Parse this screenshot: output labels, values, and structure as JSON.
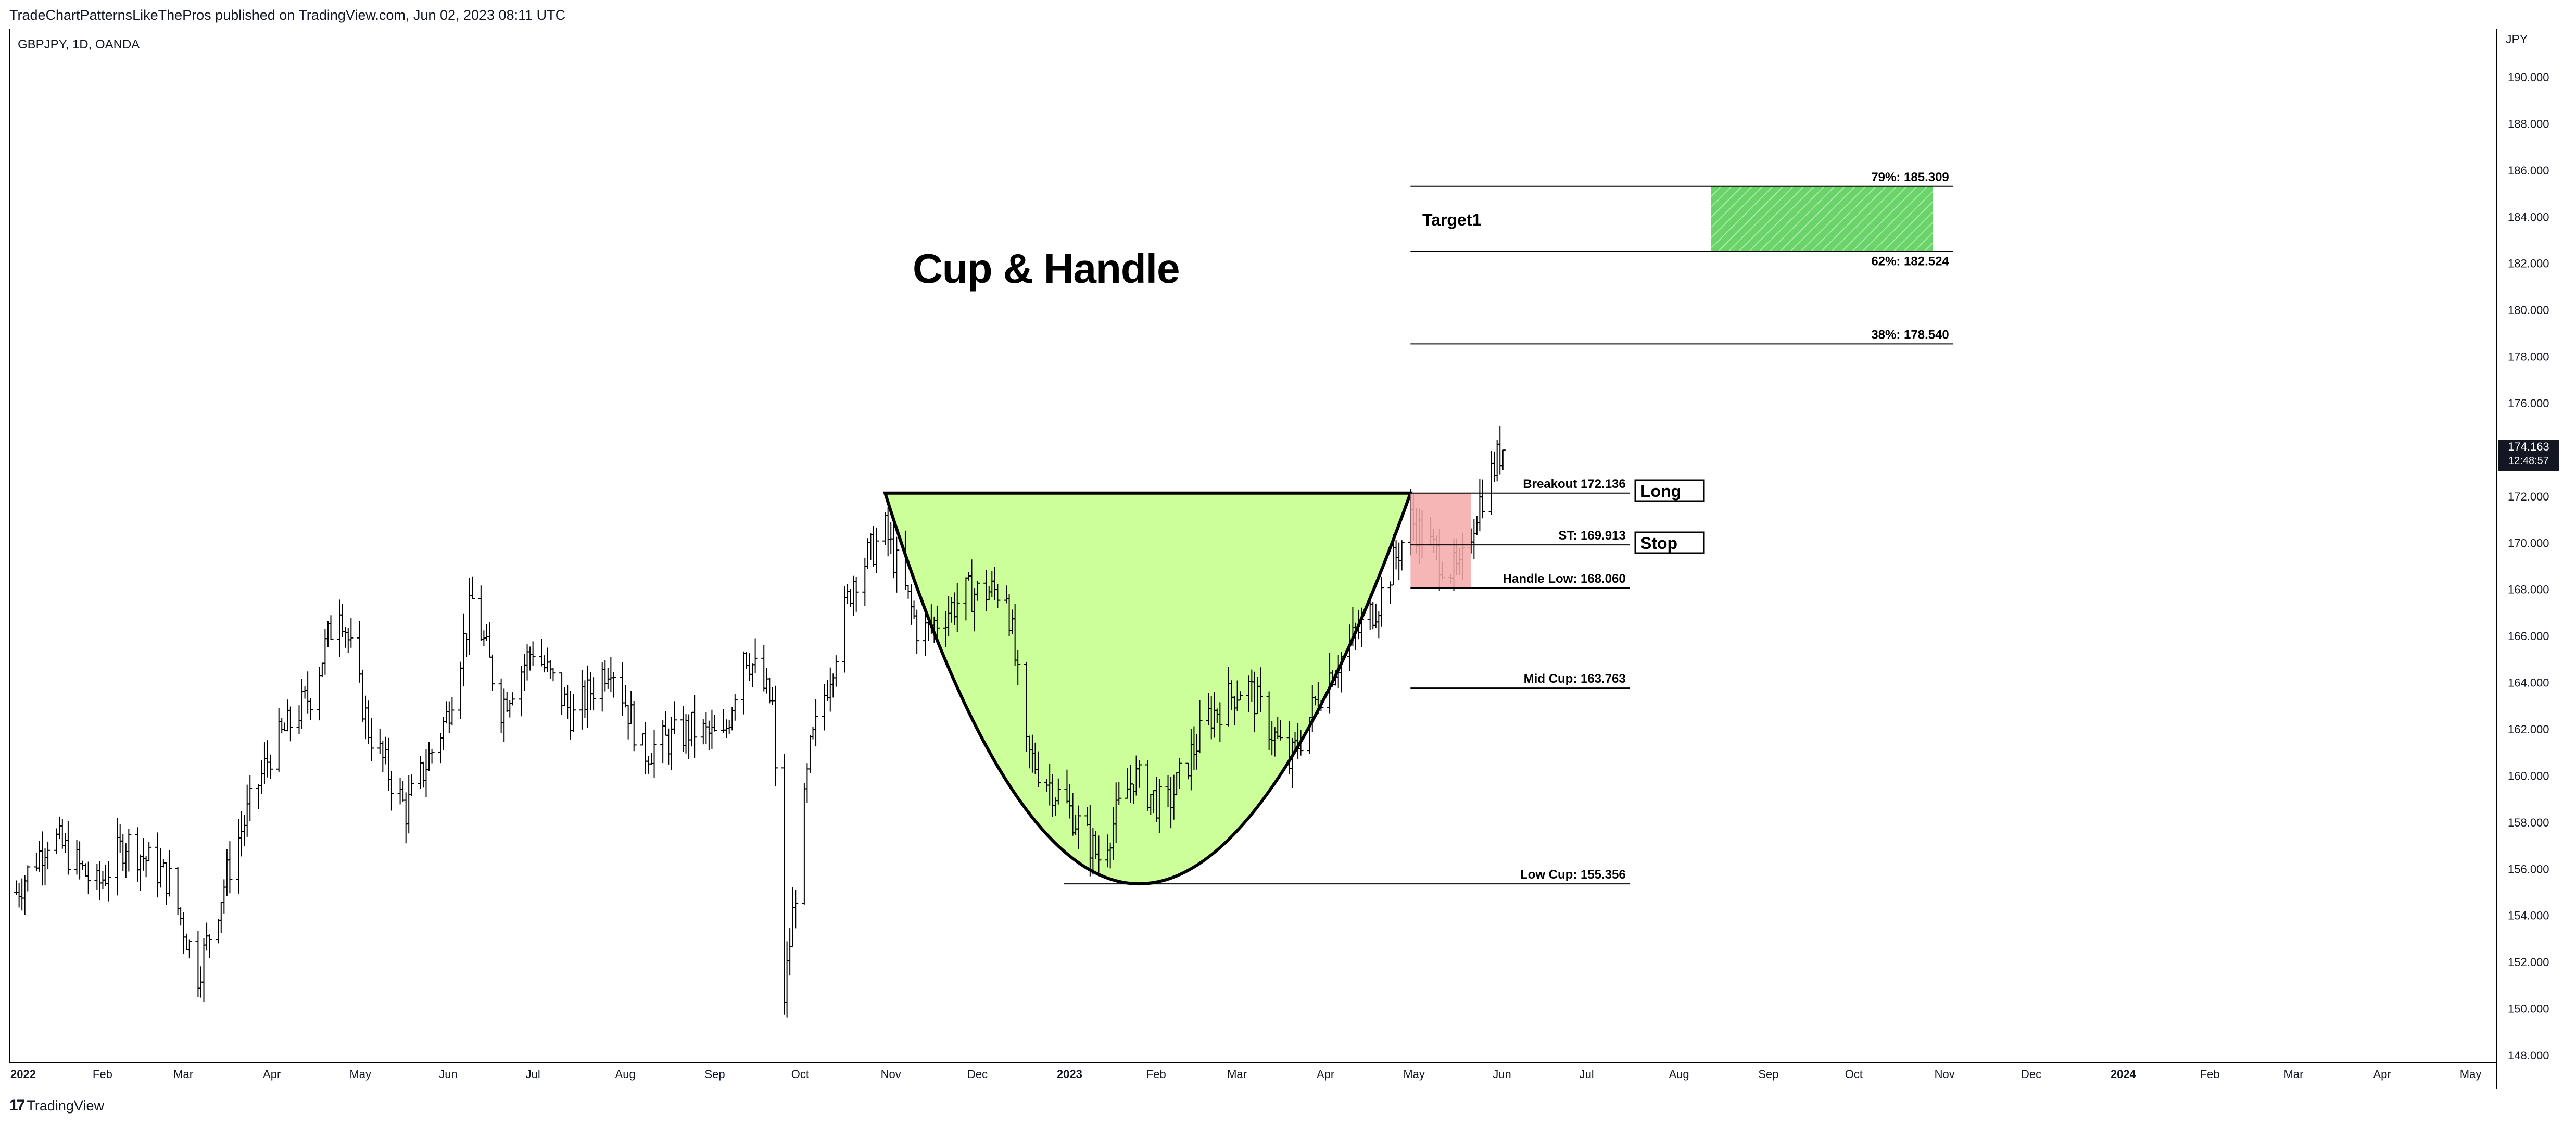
{
  "header": {
    "publisher_line": "TradeChartPatternsLikeThePros published on TradingView.com, Jun 02, 2023 08:11 UTC",
    "symbol_line": "GBPJPY, 1D, OANDA",
    "currency": "JPY"
  },
  "footer": {
    "logo": "17",
    "brand": "TradingView"
  },
  "chart_data": {
    "type": "ohlc-bar",
    "title": "Cup & Handle",
    "y_axis": {
      "ticks": [
        "190.000",
        "188.000",
        "186.000",
        "184.000",
        "182.000",
        "180.000",
        "178.000",
        "176.000",
        "174.000",
        "172.000",
        "170.000",
        "168.000",
        "166.000",
        "164.000",
        "162.000",
        "160.000",
        "158.000",
        "156.000",
        "154.000",
        "152.000",
        "150.000",
        "148.000"
      ],
      "ylim": [
        147.9,
        191.0
      ]
    },
    "x_axis": {
      "ticks": [
        {
          "label": "2022",
          "bold": true
        },
        {
          "label": "Feb"
        },
        {
          "label": "Mar"
        },
        {
          "label": "Apr"
        },
        {
          "label": "May"
        },
        {
          "label": "Jun"
        },
        {
          "label": "Jul"
        },
        {
          "label": "Aug"
        },
        {
          "label": "Sep"
        },
        {
          "label": "Oct"
        },
        {
          "label": "Nov"
        },
        {
          "label": "Dec"
        },
        {
          "label": "2023",
          "bold": true
        },
        {
          "label": "Feb"
        },
        {
          "label": "Mar"
        },
        {
          "label": "Apr"
        },
        {
          "label": "May"
        },
        {
          "label": "Jun"
        },
        {
          "label": "Jul"
        },
        {
          "label": "Aug"
        },
        {
          "label": "Sep"
        },
        {
          "label": "Oct"
        },
        {
          "label": "Nov"
        },
        {
          "label": "Dec"
        },
        {
          "label": "2024",
          "bold": true
        },
        {
          "label": "Feb"
        },
        {
          "label": "Mar"
        },
        {
          "label": "Apr"
        },
        {
          "label": "May"
        }
      ]
    },
    "price_path": [
      {
        "date": "2022-01-03",
        "close": 155.0
      },
      {
        "date": "2022-01-15",
        "close": 157.5
      },
      {
        "date": "2022-01-31",
        "close": 155.2
      },
      {
        "date": "2022-02-10",
        "close": 157.2
      },
      {
        "date": "2022-02-25",
        "close": 155.5
      },
      {
        "date": "2022-03-07",
        "close": 151.5
      },
      {
        "date": "2022-03-20",
        "close": 157.0
      },
      {
        "date": "2022-04-01",
        "close": 161.0
      },
      {
        "date": "2022-04-15",
        "close": 163.5
      },
      {
        "date": "2022-04-25",
        "close": 167.5
      },
      {
        "date": "2022-05-05",
        "close": 162.0
      },
      {
        "date": "2022-05-18",
        "close": 158.5
      },
      {
        "date": "2022-06-01",
        "close": 162.5
      },
      {
        "date": "2022-06-10",
        "close": 167.5
      },
      {
        "date": "2022-06-20",
        "close": 163.0
      },
      {
        "date": "2022-07-01",
        "close": 165.5
      },
      {
        "date": "2022-07-15",
        "close": 162.5
      },
      {
        "date": "2022-07-28",
        "close": 165.0
      },
      {
        "date": "2022-08-08",
        "close": 161.0
      },
      {
        "date": "2022-08-25",
        "close": 162.0
      },
      {
        "date": "2022-09-05",
        "close": 161.5
      },
      {
        "date": "2022-09-12",
        "close": 165.5
      },
      {
        "date": "2022-09-22",
        "close": 163.0
      },
      {
        "date": "2022-09-26",
        "close": 150.5
      },
      {
        "date": "2022-10-05",
        "close": 161.0
      },
      {
        "date": "2022-10-20",
        "close": 168.5
      },
      {
        "date": "2022-10-31",
        "close": 170.5
      },
      {
        "date": "2022-11-12",
        "close": 166.0
      },
      {
        "date": "2022-11-28",
        "close": 167.8
      },
      {
        "date": "2022-12-12",
        "close": 168.0
      },
      {
        "date": "2022-12-19",
        "close": 161.0
      },
      {
        "date": "2023-01-03",
        "close": 158.5
      },
      {
        "date": "2023-01-13",
        "close": 156.5
      },
      {
        "date": "2023-01-25",
        "close": 160.0
      },
      {
        "date": "2023-02-05",
        "close": 158.5
      },
      {
        "date": "2023-02-20",
        "close": 162.5
      },
      {
        "date": "2023-03-05",
        "close": 164.0
      },
      {
        "date": "2023-03-20",
        "close": 160.5
      },
      {
        "date": "2023-04-01",
        "close": 164.0
      },
      {
        "date": "2023-04-20",
        "close": 167.5
      },
      {
        "date": "2023-05-01",
        "close": 171.0
      },
      {
        "date": "2023-05-10",
        "close": 169.5
      },
      {
        "date": "2023-05-18",
        "close": 168.6
      },
      {
        "date": "2023-05-24",
        "close": 171.5
      },
      {
        "date": "2023-06-02",
        "close": 174.163
      }
    ],
    "last_price": {
      "value": "174.163",
      "countdown": "12:48:57"
    },
    "annotations": {
      "cup_rim_price": 172.136,
      "cup_low_price": 155.356,
      "cup_start_date": "2022-10-31",
      "cup_end_date": "2023-05-01",
      "cup_low_date": "2023-01-24",
      "cup_fill": "#ccfe9a",
      "handle_box": {
        "from": "2023-05-01",
        "to": "2023-05-22",
        "top": 172.136,
        "bottom": 168.06,
        "color": "#f4a9a9"
      },
      "target_zone": {
        "from": "2023-08-13",
        "to": "2023-10-29",
        "top": 185.309,
        "bottom": 182.524,
        "color": "#6ad46a"
      }
    },
    "levels": [
      {
        "label": "79%: 185.309",
        "price": 185.309,
        "from": "2023-05-01",
        "to": "2023-11-05"
      },
      {
        "label": "62%: 182.524",
        "price": 182.524,
        "from": "2023-05-01",
        "to": "2023-11-05"
      },
      {
        "label": "38%: 178.540",
        "price": 178.54,
        "from": "2023-05-01",
        "to": "2023-11-05"
      },
      {
        "label": "Breakout 172.136",
        "price": 172.136,
        "from": "2023-05-01",
        "to": "2023-07-16"
      },
      {
        "label": "ST: 169.913",
        "price": 169.913,
        "from": "2023-05-01",
        "to": "2023-07-16"
      },
      {
        "label": "Handle Low: 168.060",
        "price": 168.06,
        "from": "2023-05-01",
        "to": "2023-07-16"
      },
      {
        "label": "Mid Cup: 163.763",
        "price": 163.763,
        "from": "2023-05-01",
        "to": "2023-07-16"
      },
      {
        "label": "Low Cup: 155.356",
        "price": 155.356,
        "from": "2023-01-01",
        "to": "2023-07-16"
      }
    ],
    "labels": {
      "target1": "Target1",
      "long": "Long",
      "stop": "Stop"
    }
  }
}
